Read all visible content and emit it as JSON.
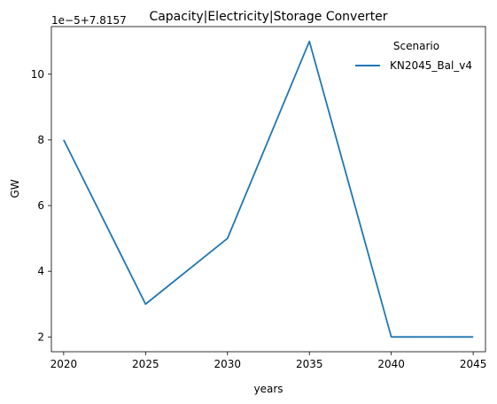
{
  "chart_data": {
    "type": "line",
    "title": "Capacity|Electricity|Storage Converter",
    "xlabel": "years",
    "ylabel": "GW",
    "y_offset_label": "1e−5+7.8157",
    "x": [
      2020,
      2025,
      2030,
      2035,
      2040,
      2045
    ],
    "x_ticks": [
      "2020",
      "2025",
      "2030",
      "2035",
      "2040",
      "2045"
    ],
    "y_ticks": [
      2,
      4,
      6,
      8,
      10
    ],
    "y_tick_labels": [
      "2",
      "4",
      "6",
      "8",
      "10"
    ],
    "xlim": [
      2019.25,
      2045.75
    ],
    "ylim": [
      1.55,
      11.45
    ],
    "grid": false,
    "legend": {
      "title": "Scenario",
      "placement": "top-right"
    },
    "series": [
      {
        "name": "KN2045_Bal_v4",
        "color": "#1f77b4",
        "values": [
          8,
          3,
          5,
          11,
          2,
          2
        ]
      }
    ]
  }
}
